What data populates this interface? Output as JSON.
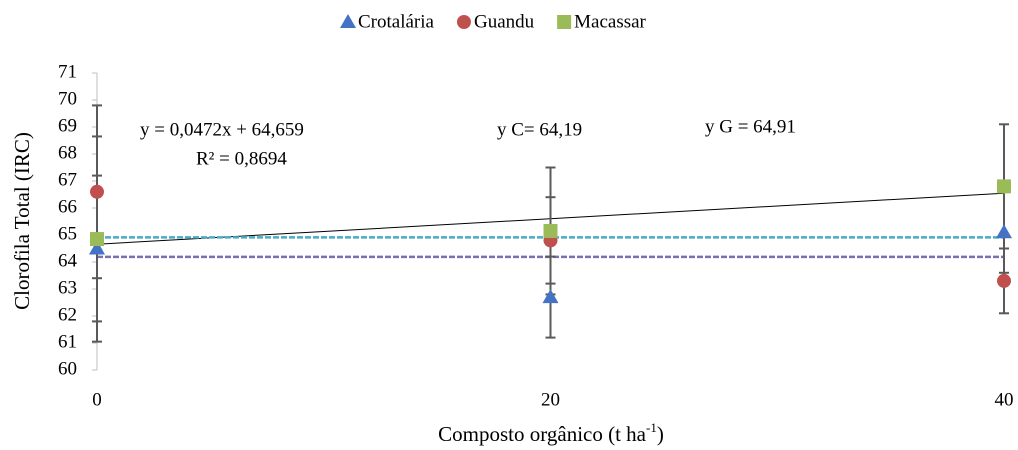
{
  "chart_data": {
    "type": "scatter",
    "xlabel": {
      "text": "Composto orgânico (t ha",
      "sup": "-1",
      "end": ")"
    },
    "ylabel": "Clorofila Total (IRC)",
    "x": [
      0,
      20,
      40
    ],
    "xlim": [
      0,
      40
    ],
    "xticks": [
      0,
      20,
      40
    ],
    "ylim": [
      60,
      71
    ],
    "yticks": [
      60,
      61,
      62,
      63,
      64,
      65,
      66,
      67,
      68,
      69,
      70,
      71
    ],
    "legend": "top",
    "series": [
      {
        "name": "Crotalária",
        "color": "#4472c4",
        "marker": "triangle",
        "values": [
          64.5,
          62.7,
          65.1
        ],
        "errors": [
          2.7,
          1.5,
          1.5
        ]
      },
      {
        "name": "Guandu",
        "color": "#c0504d",
        "marker": "circle",
        "values": [
          66.6,
          64.8,
          63.3
        ],
        "errors": [
          3.2,
          1.6,
          1.2
        ]
      },
      {
        "name": "Macassar",
        "color": "#9bbb59",
        "marker": "square",
        "values": [
          64.85,
          65.15,
          66.8
        ],
        "errors": [
          3.8,
          2.35,
          2.3
        ]
      }
    ],
    "trendlines": [
      {
        "kind": "linear",
        "slope": 0.0472,
        "intercept": 64.659,
        "color": "#000000"
      },
      {
        "kind": "constant",
        "value": 64.19,
        "color": "#7f6fb0"
      },
      {
        "kind": "constant",
        "value": 64.91,
        "color": "#4bacc6"
      }
    ],
    "annotations": [
      "y = 0,0472x + 64,659",
      "R² = 0,8694",
      "y C= 64,19",
      "y G = 64,91"
    ]
  }
}
